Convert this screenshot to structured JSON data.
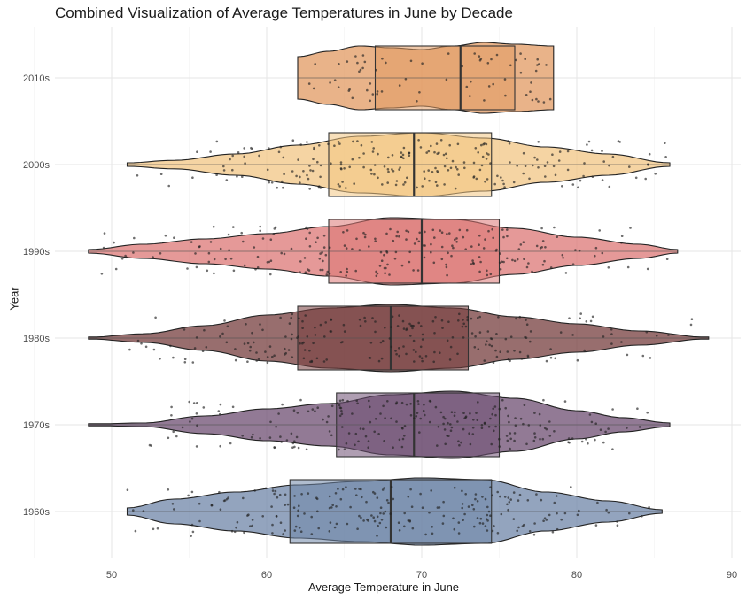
{
  "chart_data": {
    "type": "violin",
    "title": "Combined Visualization of Average Temperatures in June by Decade",
    "xlabel": "Average Temperature in June",
    "ylabel": "Year",
    "xlim": [
      46.5,
      90.5
    ],
    "x_ticks": [
      50,
      60,
      70,
      80,
      90
    ],
    "grid": true,
    "categories": [
      "1960s",
      "1970s",
      "1980s",
      "1990s",
      "2000s",
      "2010s"
    ],
    "series": [
      {
        "category": "1960s",
        "color": "#6f86a8",
        "min": 51.0,
        "max": 85.5,
        "q1": 61.5,
        "median": 68.0,
        "q3": 74.5,
        "density": [
          [
            51.0,
            0.1
          ],
          [
            54,
            0.35
          ],
          [
            58,
            0.55
          ],
          [
            62,
            0.75
          ],
          [
            66,
            0.85
          ],
          [
            70,
            0.95
          ],
          [
            74,
            0.9
          ],
          [
            78,
            0.55
          ],
          [
            82,
            0.3
          ],
          [
            85.5,
            0.05
          ]
        ]
      },
      {
        "category": "1970s",
        "color": "#6e4e72",
        "min": 48.5,
        "max": 86.0,
        "q1": 64.5,
        "median": 69.5,
        "q3": 75.0,
        "density": [
          [
            48.5,
            0.02
          ],
          [
            52,
            0.05
          ],
          [
            56,
            0.25
          ],
          [
            60,
            0.45
          ],
          [
            64,
            0.6
          ],
          [
            68,
            0.85
          ],
          [
            72,
            0.95
          ],
          [
            76,
            0.75
          ],
          [
            80,
            0.4
          ],
          [
            83,
            0.2
          ],
          [
            86,
            0.05
          ]
        ]
      },
      {
        "category": "1980s",
        "color": "#763d3d",
        "min": 48.5,
        "max": 88.5,
        "q1": 62.0,
        "median": 68.0,
        "q3": 73.0,
        "density": [
          [
            48.5,
            0.02
          ],
          [
            52,
            0.12
          ],
          [
            56,
            0.35
          ],
          [
            60,
            0.65
          ],
          [
            64,
            0.85
          ],
          [
            68,
            0.95
          ],
          [
            72,
            0.85
          ],
          [
            76,
            0.6
          ],
          [
            80,
            0.4
          ],
          [
            84,
            0.2
          ],
          [
            88.5,
            0.02
          ]
        ]
      },
      {
        "category": "1990s",
        "color": "#dc7775",
        "min": 48.5,
        "max": 86.5,
        "q1": 64.0,
        "median": 70.0,
        "q3": 75.0,
        "density": [
          [
            48.5,
            0.05
          ],
          [
            52,
            0.2
          ],
          [
            56,
            0.35
          ],
          [
            60,
            0.5
          ],
          [
            64,
            0.7
          ],
          [
            68,
            0.95
          ],
          [
            72,
            0.9
          ],
          [
            76,
            0.65
          ],
          [
            80,
            0.4
          ],
          [
            84,
            0.2
          ],
          [
            86.5,
            0.05
          ]
        ]
      },
      {
        "category": "2000s",
        "color": "#f2c684",
        "min": 51.0,
        "max": 86.0,
        "q1": 64.0,
        "median": 69.5,
        "q3": 74.5,
        "density": [
          [
            51.0,
            0.05
          ],
          [
            54,
            0.12
          ],
          [
            58,
            0.3
          ],
          [
            62,
            0.55
          ],
          [
            66,
            0.8
          ],
          [
            70,
            0.9
          ],
          [
            74,
            0.75
          ],
          [
            78,
            0.5
          ],
          [
            82,
            0.3
          ],
          [
            86,
            0.05
          ]
        ]
      },
      {
        "category": "2010s",
        "color": "#e29a62",
        "min": 62.0,
        "max": 78.5,
        "q1": 67.0,
        "median": 72.5,
        "q3": 76.0,
        "density": [
          [
            62.0,
            0.6
          ],
          [
            64,
            0.75
          ],
          [
            66,
            0.9
          ],
          [
            68,
            0.85
          ],
          [
            70,
            0.8
          ],
          [
            72,
            0.9
          ],
          [
            74,
            1.0
          ],
          [
            76,
            0.95
          ],
          [
            78.5,
            0.9
          ]
        ]
      }
    ]
  }
}
